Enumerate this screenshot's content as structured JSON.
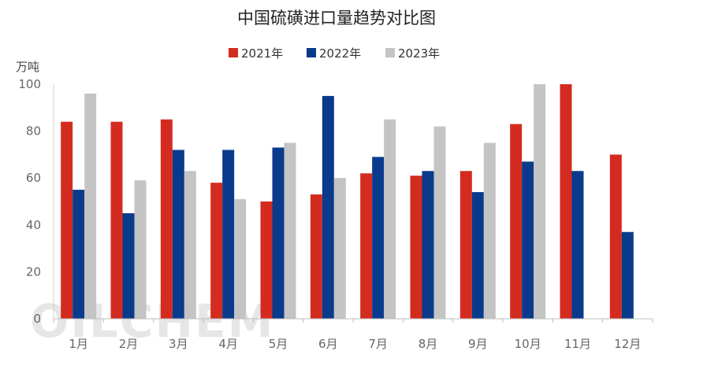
{
  "chart_data": {
    "type": "bar",
    "title": "中国硫磺进口量趋势对比图",
    "ylabel": "万吨",
    "xlabel": "",
    "ylim": [
      0,
      100
    ],
    "yticks": [
      0,
      20,
      40,
      60,
      80,
      100
    ],
    "categories": [
      "1月",
      "2月",
      "3月",
      "4月",
      "5月",
      "6月",
      "7月",
      "8月",
      "9月",
      "10月",
      "11月",
      "12月"
    ],
    "series": [
      {
        "name": "2021年",
        "color": "#d42b20",
        "values": [
          84,
          84,
          85,
          58,
          50,
          53,
          62,
          61,
          63,
          83,
          100,
          70
        ]
      },
      {
        "name": "2022年",
        "color": "#0a3a8c",
        "values": [
          55,
          45,
          72,
          72,
          73,
          95,
          69,
          63,
          54,
          67,
          63,
          37
        ]
      },
      {
        "name": "2023年",
        "color": "#c4c4c4",
        "values": [
          96,
          59,
          63,
          51,
          75,
          60,
          85,
          82,
          75,
          100,
          null,
          null
        ]
      }
    ],
    "legend_position": "top-center",
    "grid": false
  },
  "watermark": "OILCHEM"
}
